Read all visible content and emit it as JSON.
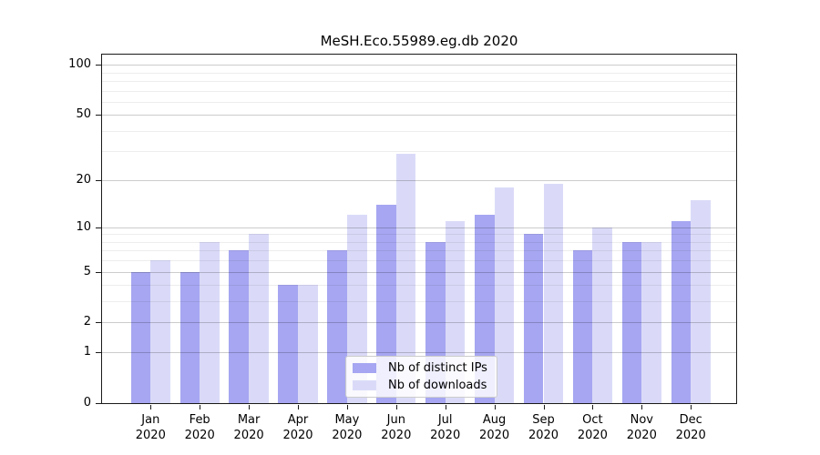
{
  "chart_data": {
    "type": "bar",
    "title": "MeSH.Eco.55989.eg.db 2020",
    "year_label": "2020",
    "months": [
      "Jan",
      "Feb",
      "Mar",
      "Apr",
      "May",
      "Jun",
      "Jul",
      "Aug",
      "Sep",
      "Oct",
      "Nov",
      "Dec"
    ],
    "series": [
      {
        "name": "Nb of distinct IPs",
        "color": "#a6a6f2",
        "values": [
          5,
          5,
          7,
          4,
          7,
          14,
          8,
          12,
          9,
          7,
          8,
          11
        ]
      },
      {
        "name": "Nb of downloads",
        "color": "#dadaf8",
        "values": [
          6,
          8,
          9,
          4,
          12,
          29,
          11,
          18,
          19,
          10,
          8,
          15
        ]
      }
    ],
    "y_axis": {
      "scale": "log1p",
      "ticks": [
        0,
        1,
        2,
        5,
        10,
        20,
        50,
        100
      ],
      "minor_gridlines": [
        3,
        4,
        6,
        7,
        8,
        9,
        30,
        40,
        60,
        70,
        80,
        90
      ],
      "ylim": [
        0,
        115
      ]
    },
    "legend": {
      "position": "lower center",
      "entries": [
        "Nb of distinct IPs",
        "Nb of downloads"
      ]
    },
    "grid": true
  }
}
